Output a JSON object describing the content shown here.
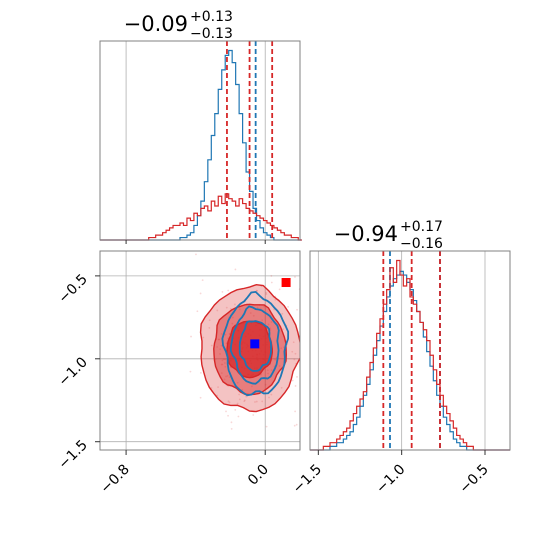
{
  "colors": {
    "series_a": "#d62728",
    "series_b": "#1f77b4",
    "marker_red": "#ff0000",
    "marker_blue": "#0000ff"
  },
  "chart_data": [
    {
      "panel": "marginal-x",
      "type": "step-histogram",
      "title": {
        "main": "−0.09",
        "sup": "+0.13",
        "sub": "−0.13"
      },
      "x_range": [
        -0.95,
        0.2
      ],
      "bin_start": -0.95,
      "bin_width": 0.02,
      "series": [
        {
          "color_key": "series_b",
          "values": [
            0,
            0,
            0,
            0,
            0,
            0,
            0,
            0,
            0,
            0,
            0,
            0,
            0,
            0,
            0,
            0,
            0,
            0,
            0,
            0,
            0,
            0,
            0,
            1,
            1,
            2,
            3,
            6,
            10,
            16,
            24,
            33,
            43,
            52,
            62,
            70,
            76,
            78,
            73,
            64,
            52,
            40,
            28,
            20,
            13,
            8,
            5,
            3,
            2,
            1,
            0,
            0,
            0,
            0,
            0,
            0,
            0,
            0
          ],
          "quantiles": [
            -0.055
          ]
        },
        {
          "color_key": "series_a",
          "values": [
            0,
            0,
            0,
            0,
            0,
            0,
            0,
            0,
            0,
            0,
            0,
            0,
            0,
            0,
            1,
            1,
            2,
            2,
            3,
            4,
            5,
            6,
            6,
            7,
            6,
            9,
            8,
            11,
            10,
            13,
            14,
            12,
            16,
            14,
            18,
            15,
            19,
            17,
            16,
            14,
            17,
            15,
            13,
            12,
            11,
            10,
            9,
            8,
            7,
            6,
            5,
            4,
            3,
            2,
            2,
            1,
            1,
            0
          ],
          "quantiles": [
            -0.22,
            -0.09,
            0.04
          ]
        }
      ],
      "x_tick_labels": []
    },
    {
      "panel": "marginal-y",
      "type": "step-histogram",
      "title": {
        "main": "−0.94",
        "sup": "+0.17",
        "sub": "−0.16"
      },
      "x_range": [
        -1.55,
        -0.35
      ],
      "bin_start": -1.55,
      "bin_width": 0.02,
      "x_ticks": [
        -1.5,
        -1.0,
        -0.5
      ],
      "x_tick_labels": [
        "−1.5",
        "−1.0",
        "−0.5"
      ],
      "series": [
        {
          "color_key": "series_b",
          "values": [
            0,
            0,
            0,
            0,
            0,
            0,
            1,
            1,
            2,
            2,
            3,
            4,
            5,
            7,
            9,
            12,
            15,
            18,
            22,
            26,
            30,
            34,
            38,
            42,
            45,
            47,
            48,
            49,
            48,
            46,
            44,
            41,
            38,
            35,
            31,
            27,
            23,
            19,
            15,
            12,
            9,
            7,
            5,
            3,
            2,
            1,
            1,
            0,
            0,
            0,
            0,
            0,
            0,
            0,
            0,
            0,
            0,
            0,
            0,
            0
          ],
          "quantiles": [
            -1.07,
            -0.77
          ]
        },
        {
          "color_key": "series_a",
          "values": [
            0,
            0,
            0,
            0,
            1,
            1,
            2,
            2,
            3,
            4,
            5,
            6,
            8,
            10,
            12,
            14,
            16,
            20,
            24,
            28,
            32,
            36,
            40,
            44,
            50,
            46,
            52,
            48,
            45,
            47,
            42,
            40,
            38,
            35,
            33,
            30,
            26,
            22,
            18,
            15,
            12,
            10,
            8,
            6,
            4,
            3,
            2,
            1,
            1,
            0,
            0,
            0,
            0,
            0,
            0,
            0,
            0,
            0,
            0,
            0
          ],
          "quantiles": [
            -1.11,
            -0.94,
            -0.77
          ]
        }
      ]
    },
    {
      "panel": "joint",
      "type": "contour",
      "x_range": [
        -0.95,
        0.2
      ],
      "y_range": [
        -1.55,
        -0.35
      ],
      "x_ticks": [
        -0.8,
        0.0
      ],
      "x_tick_labels": [
        "−0.8",
        "0.0"
      ],
      "y_ticks": [
        -0.5,
        -1.0,
        -1.5
      ],
      "y_tick_labels": [
        "−0.5",
        "−1.0",
        "−1.5"
      ],
      "contours": [
        {
          "color_key": "series_a",
          "center": [
            -0.09,
            -0.94
          ],
          "sigma": [
            0.13,
            0.17
          ],
          "levels": [
            1.0,
            1.6,
            2.2
          ]
        },
        {
          "color_key": "series_b",
          "center": [
            -0.055,
            -0.92
          ],
          "sigma": [
            0.09,
            0.15
          ],
          "levels": [
            1.0,
            1.5,
            2.0
          ]
        }
      ],
      "markers": [
        {
          "x": 0.12,
          "y": -0.54,
          "color_key": "marker_red",
          "shape": "square"
        },
        {
          "x": -0.06,
          "y": -0.91,
          "color_key": "marker_blue",
          "shape": "square"
        }
      ]
    }
  ]
}
